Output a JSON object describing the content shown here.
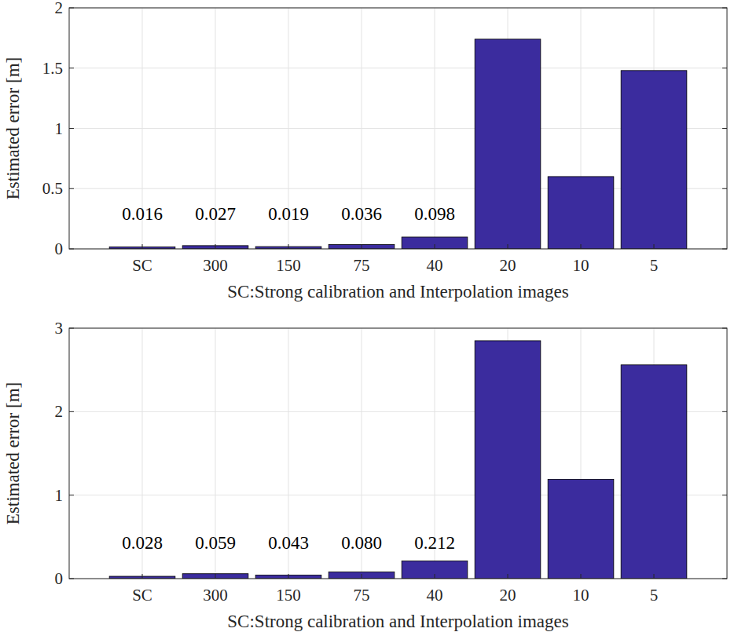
{
  "chart_data": [
    {
      "type": "bar",
      "x_label": "SC:Strong calibration and Interpolation images",
      "y_label": "Estimated error [m]",
      "categories": [
        "SC",
        "300",
        "150",
        "75",
        "40",
        "20",
        "10",
        "5"
      ],
      "values": [
        0.016,
        0.027,
        0.019,
        0.036,
        0.098,
        1.74,
        0.6,
        1.48
      ],
      "value_labels": [
        "0.016",
        "0.027",
        "0.019",
        "0.036",
        "0.098",
        null,
        null,
        null
      ],
      "data_labels": true,
      "color": "#3b2c9e",
      "ylim": [
        0,
        2
      ],
      "yticks": [
        0,
        0.5,
        1,
        1.5,
        2
      ],
      "grid": true
    },
    {
      "type": "bar",
      "x_label": "SC:Strong calibration and Interpolation images",
      "y_label": "Estimated error [m]",
      "categories": [
        "SC",
        "300",
        "150",
        "75",
        "40",
        "20",
        "10",
        "5"
      ],
      "values": [
        0.028,
        0.059,
        0.043,
        0.08,
        0.212,
        2.85,
        1.19,
        2.56
      ],
      "value_labels": [
        "0.028",
        "0.059",
        "0.043",
        "0.080",
        "0.212",
        null,
        null,
        null
      ],
      "data_labels": true,
      "color": "#3b2c9e",
      "ylim": [
        0,
        3
      ],
      "yticks": [
        0,
        1,
        2,
        3
      ],
      "grid": true
    }
  ]
}
